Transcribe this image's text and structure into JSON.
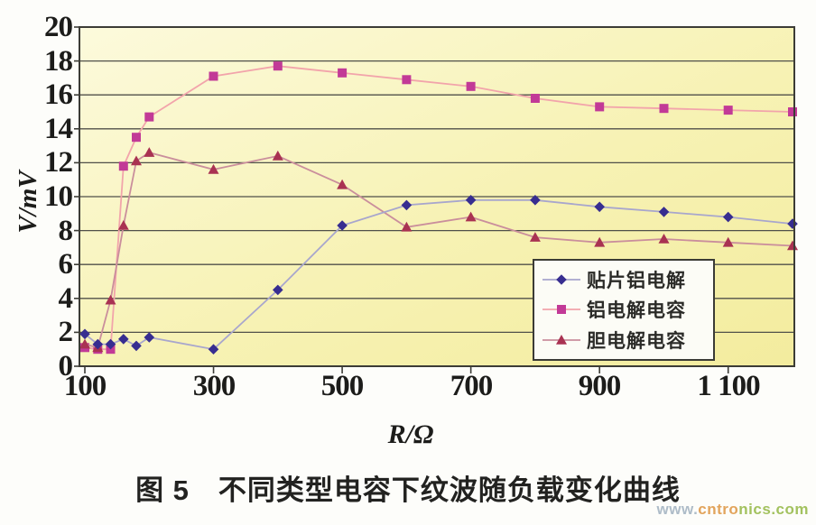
{
  "figure": {
    "caption": "图 5　不同类型电容下纹波随负载变化曲线",
    "watermark": {
      "part1": "www.",
      "part2": "cntro",
      "part3": "nics.com",
      "color1": "#aebcc8",
      "color2": "#e2a45c",
      "color3": "#a3c25f"
    }
  },
  "chart_data": {
    "type": "line",
    "title": "",
    "xlabel": "R/Ω",
    "ylabel": "V/mV",
    "xlim": [
      100,
      1200
    ],
    "ylim": [
      0,
      20
    ],
    "grid": "horizontal-only",
    "legend_position": "inside-right-lower",
    "plot_bg_colors": [
      "#fcfadc",
      "#f7f2b4",
      "#f3ec9e"
    ],
    "gridline_color": "#50504a",
    "axis_color": "#3c3c36",
    "x": [
      100,
      120,
      140,
      160,
      180,
      200,
      300,
      400,
      500,
      600,
      700,
      800,
      900,
      1000,
      1100,
      1200
    ],
    "xticks": [
      100,
      300,
      500,
      700,
      900,
      1100
    ],
    "xtick_labels": [
      "100",
      "300",
      "500",
      "700",
      "900",
      "1 100"
    ],
    "ytick_labels": [
      "20",
      "18",
      "16",
      "14",
      "12",
      "10",
      "8",
      "6",
      "4",
      "2",
      "0"
    ],
    "series": [
      {
        "name": "贴片铝电解",
        "marker": "diamond",
        "marker_color": "#372d90",
        "line_color": "#a8a6cd",
        "values": [
          1.9,
          1.3,
          1.3,
          1.6,
          1.2,
          1.7,
          1.0,
          4.5,
          8.3,
          9.5,
          9.8,
          9.8,
          9.4,
          9.1,
          8.8,
          8.4
        ]
      },
      {
        "name": "铝电解电容",
        "marker": "square",
        "marker_color": "#c23a97",
        "line_color": "#f2a4ab",
        "values": [
          1.1,
          1.0,
          1.0,
          11.8,
          13.5,
          14.7,
          17.1,
          17.7,
          17.3,
          16.9,
          16.5,
          15.8,
          15.3,
          15.2,
          15.1,
          15.0
        ]
      },
      {
        "name": "胆电解电容",
        "marker": "triangle",
        "marker_color": "#a93252",
        "line_color": "#ca8e9c",
        "values": [
          1.3,
          1.1,
          3.9,
          8.3,
          12.1,
          12.6,
          11.6,
          12.4,
          10.7,
          8.2,
          8.8,
          7.6,
          7.3,
          7.5,
          7.3,
          7.1
        ]
      }
    ]
  }
}
